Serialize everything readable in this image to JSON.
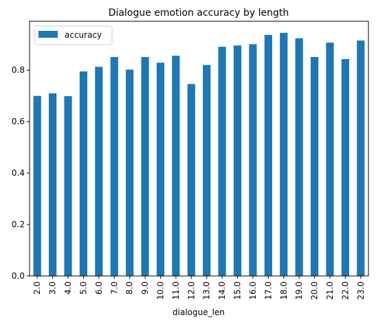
{
  "chart_data": {
    "type": "bar",
    "title": "Dialogue emotion accuracy by length",
    "xlabel": "dialogue_len",
    "ylabel": "",
    "categories": [
      "2.0",
      "3.0",
      "4.0",
      "5.0",
      "6.0",
      "7.0",
      "8.0",
      "9.0",
      "10.0",
      "11.0",
      "12.0",
      "13.0",
      "14.0",
      "15.0",
      "16.0",
      "17.0",
      "18.0",
      "19.0",
      "20.0",
      "21.0",
      "22.0",
      "23.0"
    ],
    "series": [
      {
        "name": "accuracy",
        "color": "#1f77b4",
        "values": [
          0.7,
          0.71,
          0.699,
          0.795,
          0.813,
          0.851,
          0.802,
          0.851,
          0.829,
          0.856,
          0.746,
          0.82,
          0.891,
          0.896,
          0.901,
          0.937,
          0.945,
          0.924,
          0.851,
          0.907,
          0.843,
          0.915
        ]
      }
    ],
    "ylim": [
      0,
      0.99
    ],
    "yticks": [
      0.0,
      0.2,
      0.4,
      0.6,
      0.8
    ],
    "ytick_labels": [
      "0.0",
      "0.2",
      "0.4",
      "0.6",
      "0.8"
    ],
    "legend": {
      "position": "top-left",
      "entries": [
        "accuracy"
      ]
    },
    "grid": false
  }
}
